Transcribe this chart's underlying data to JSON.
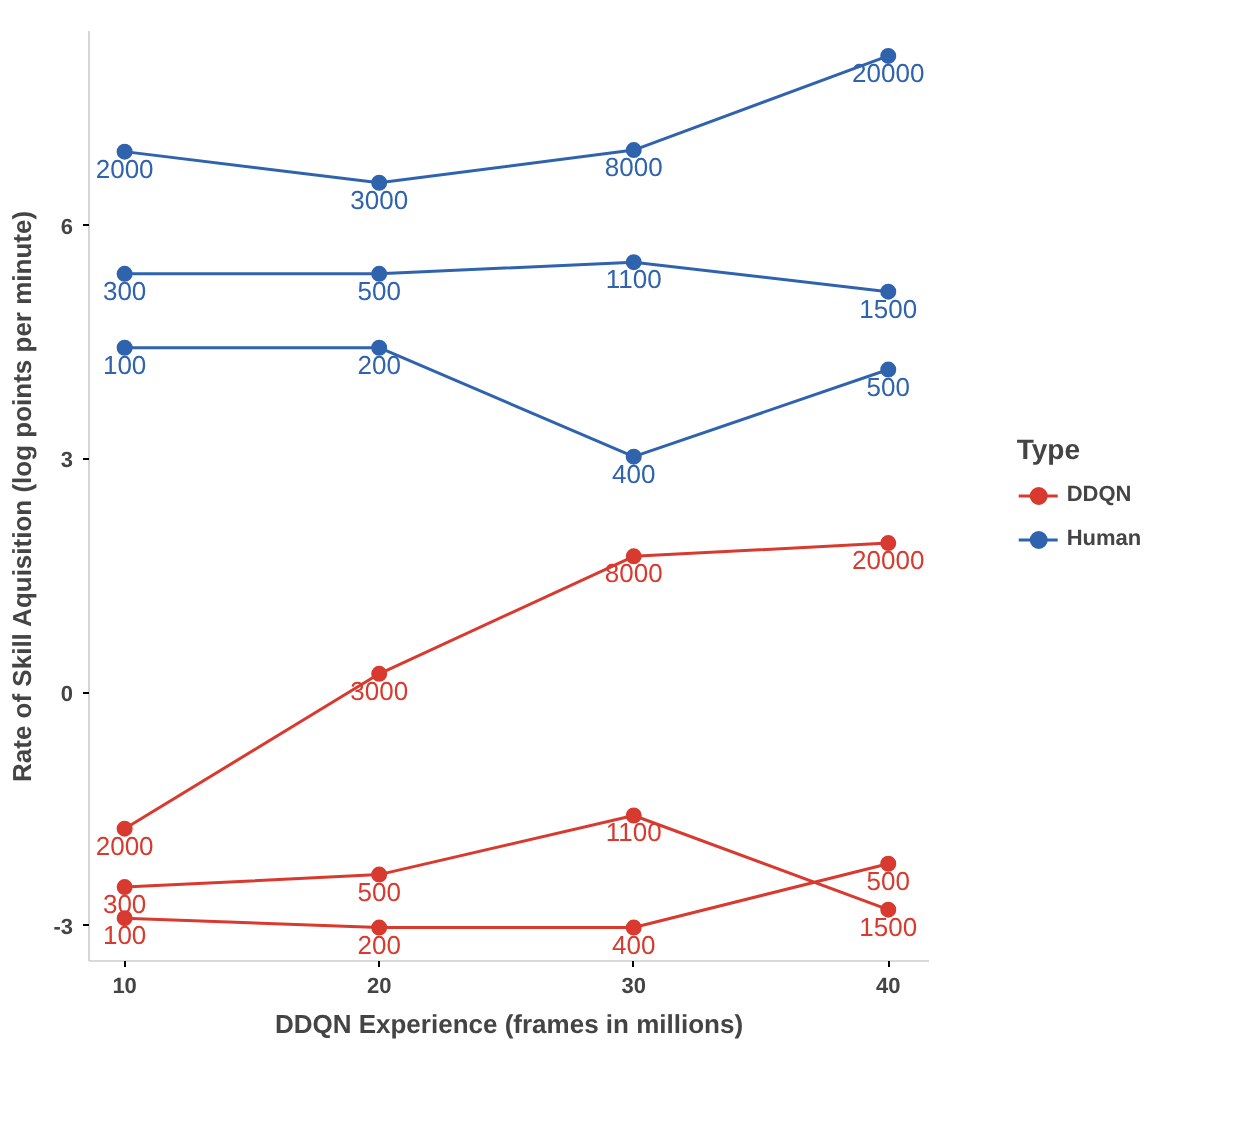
{
  "chart_data": {
    "type": "line",
    "xlabel": "DDQN Experience (frames in millions)",
    "ylabel": "Rate of Skill Aquisition (log points per minute)",
    "legend_title": "Type",
    "x": [
      10,
      20,
      30,
      40
    ],
    "xlim": [
      8.6,
      41.6
    ],
    "xticks": [
      10,
      20,
      30,
      40
    ],
    "ylim": [
      -3.45,
      8.5
    ],
    "yticks": [
      {
        "value": -3,
        "label": "-3"
      },
      0,
      3,
      6
    ],
    "series": [
      {
        "name": "DDQN",
        "color": "#d83a2f",
        "values": [
          -1.75,
          0.24,
          1.75,
          1.92
        ]
      },
      {
        "color": "#d83a2f",
        "values": [
          -2.5,
          -2.34,
          -1.58,
          -2.79
        ]
      },
      {
        "color": "#d83a2f",
        "values": [
          -2.9,
          -3.02,
          -3.02,
          -2.2
        ]
      },
      {
        "name": "Human",
        "color": "#2f63ad",
        "values": [
          6.95,
          6.55,
          6.97,
          8.18
        ]
      },
      {
        "color": "#2f63ad",
        "values": [
          5.38,
          5.38,
          5.53,
          5.15
        ]
      },
      {
        "color": "#2f63ad",
        "values": [
          4.43,
          4.43,
          3.03,
          4.15
        ]
      }
    ],
    "annotations": [
      {
        "text": "2000",
        "x": 10,
        "y": -1.75
      },
      {
        "text": "3000",
        "x": 20,
        "y": 0.24
      },
      {
        "text": "8000",
        "x": 30,
        "y": 1.75
      },
      {
        "text": "20000",
        "x": 40,
        "y": 1.92
      },
      {
        "text": "300",
        "x": 10,
        "y": -2.5
      },
      {
        "text": "500",
        "x": 20,
        "y": -2.34
      },
      {
        "text": "1100",
        "x": 30,
        "y": -1.58
      },
      {
        "text": "1500",
        "x": 40,
        "y": -2.79
      },
      {
        "text": "100",
        "x": 10,
        "y": -2.9
      },
      {
        "text": "200",
        "x": 20,
        "y": -3.02
      },
      {
        "text": "400",
        "x": 30,
        "y": -3.02
      },
      {
        "text": "500",
        "x": 40,
        "y": -2.2
      },
      {
        "text": "2000",
        "x": 10,
        "y": 6.95
      },
      {
        "text": "3000",
        "x": 20,
        "y": 6.55
      },
      {
        "text": "8000",
        "x": 30,
        "y": 6.97
      },
      {
        "text": "20000",
        "x": 40,
        "y": 8.18
      },
      {
        "text": "300",
        "x": 10,
        "y": 5.38
      },
      {
        "text": "500",
        "x": 20,
        "y": 5.38
      },
      {
        "text": "1100",
        "x": 30,
        "y": 5.53
      },
      {
        "text": "1500",
        "x": 40,
        "y": 5.15
      },
      {
        "text": "100",
        "x": 10,
        "y": 4.43
      },
      {
        "text": "200",
        "x": 20,
        "y": 4.43
      },
      {
        "text": "400",
        "x": 30,
        "y": 3.03
      },
      {
        "text": "500",
        "x": 40,
        "y": 4.15
      }
    ],
    "marker": "circle",
    "line_style": "solid",
    "grid": false,
    "legend": "right"
  }
}
